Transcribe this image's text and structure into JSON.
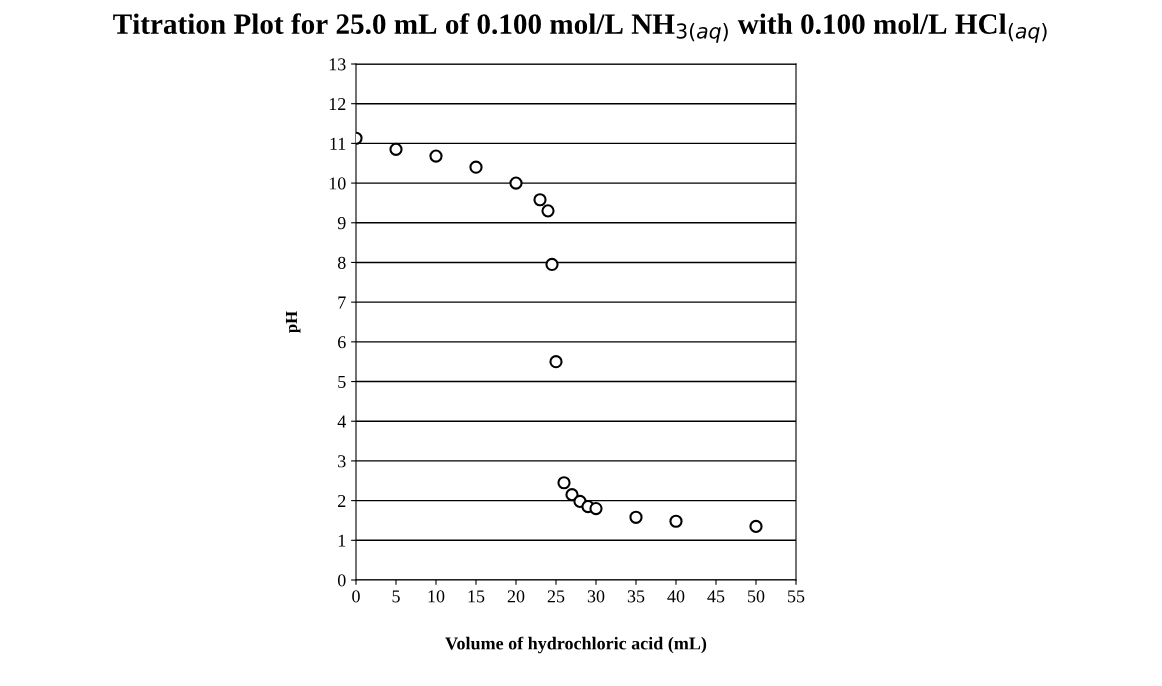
{
  "chart_data": {
    "type": "scatter",
    "title": "Titration Plot for 25.0 mL of 0.100 mol/L NH$_{3(aq)}$ with 0.100 mol/L HCl$_{(aq)}$",
    "xlabel": "Volume of hydrochloric acid (mL)",
    "ylabel": "pH",
    "x": [
      0,
      5,
      10,
      15,
      20,
      23,
      24,
      24.5,
      25,
      26,
      27,
      28,
      29,
      30,
      35,
      40,
      50
    ],
    "series": [
      {
        "color": "#000000",
        "values": [
          11.13,
          10.85,
          10.68,
          10.4,
          10.0,
          9.58,
          9.3,
          7.95,
          5.5,
          2.45,
          2.15,
          1.98,
          1.85,
          1.8,
          1.58,
          1.48,
          1.35
        ]
      }
    ],
    "xlim": [
      0,
      55
    ],
    "xticks": [
      0,
      5,
      10,
      15,
      20,
      25,
      30,
      35,
      40,
      45,
      50,
      55
    ],
    "ylim": [
      0,
      13
    ],
    "yticks": [
      0,
      1,
      2,
      3,
      4,
      5,
      6,
      7,
      8,
      9,
      10,
      11,
      12,
      13
    ],
    "grid": "y",
    "marker": "circle",
    "legend": false
  }
}
